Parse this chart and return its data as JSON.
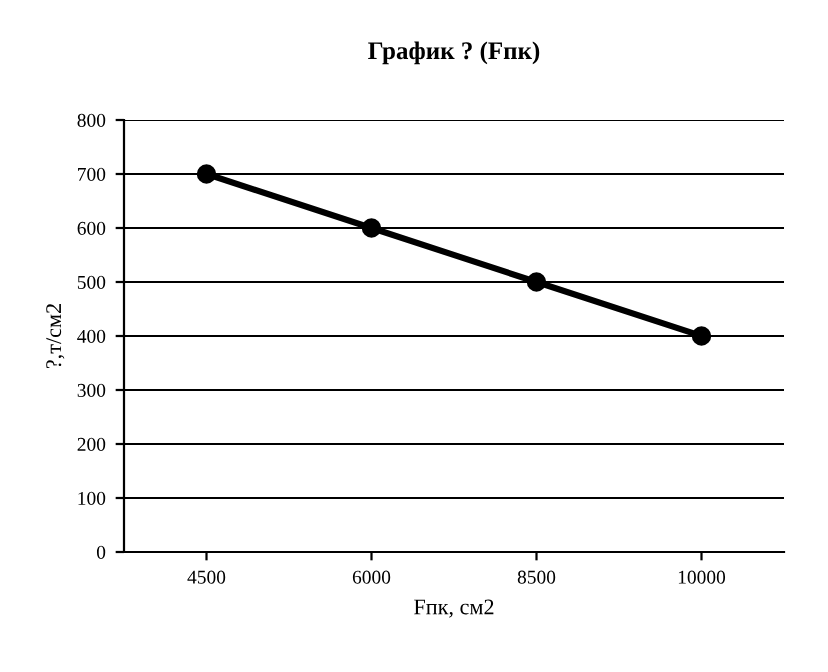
{
  "chart_data": {
    "type": "line",
    "title": "График ? (Fпк)",
    "xlabel": "Fпк, см2",
    "ylabel": "?,т/см2",
    "categories": [
      "4500",
      "6000",
      "8500",
      "10000"
    ],
    "series": [
      {
        "color": "#000000",
        "values": [
          700,
          600,
          500,
          400
        ]
      }
    ],
    "ylim": [
      0,
      800
    ],
    "yticks": [
      0,
      100,
      200,
      300,
      400,
      500,
      600,
      700,
      800
    ],
    "grid": "y",
    "marker": "circle",
    "line_style": "solid",
    "legend": false
  }
}
